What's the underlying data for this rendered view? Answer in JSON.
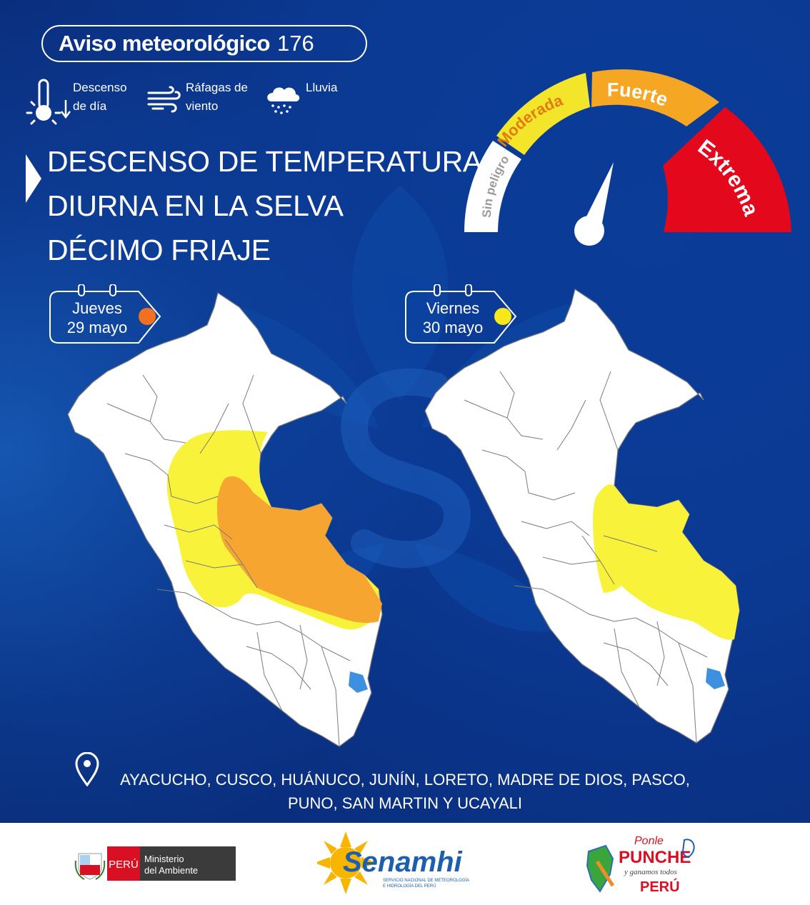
{
  "header": {
    "title": "Aviso meteorológico",
    "number": "176"
  },
  "legend": [
    {
      "icon": "thermometer-sun-down-icon",
      "line1": "Descenso",
      "line2": "de día"
    },
    {
      "icon": "wind-gust-icon",
      "line1": "Ráfagas de",
      "line2": "viento"
    },
    {
      "icon": "rain-cloud-icon",
      "line1": "Lluvia",
      "line2": ""
    }
  ],
  "headline": {
    "line1": "DESCENSO DE TEMPERATURA",
    "line2": "DIURNA EN LA SELVA",
    "line3": "DÉCIMO FRIAJE"
  },
  "gauge": {
    "levels": [
      {
        "label": "Sin peligro",
        "color": "#ffffff",
        "text_color": "#9a9a9a"
      },
      {
        "label": "Moderada",
        "color": "#f2e52a",
        "text_color": "#e07b12"
      },
      {
        "label": "Fuerte",
        "color": "#f5a623",
        "text_color": "#ffffff"
      },
      {
        "label": "Extrema",
        "color": "#e3081c",
        "text_color": "#ffffff"
      }
    ],
    "current_level": "Fuerte"
  },
  "days": [
    {
      "weekday": "Jueves",
      "date": "29 mayo",
      "color": "#f37021"
    },
    {
      "weekday": "Viernes",
      "date": "30 mayo",
      "color": "#f6e81a"
    }
  ],
  "regions": {
    "line1": "AYACUCHO, CUSCO, HUÁNUCO, JUNÍN, LORETO, MADRE DE DIOS, PASCO,",
    "line2": "PUNO, SAN MARTIN Y UCAYALI"
  },
  "footer": {
    "minam_country": "PERÚ",
    "minam_line1": "Ministerio",
    "minam_line2": "del Ambiente",
    "senamhi_name": "Senamhi",
    "senamhi_sub1": "SERVICIO NACIONAL DE METEOROLOGÍA",
    "senamhi_sub2": "E HIDROLOGÍA DEL PERÚ",
    "punche_line1": "Ponle",
    "punche_line2": "PUNCHE",
    "punche_line3": "y ganamos todos",
    "punche_line4": "PERÚ"
  }
}
